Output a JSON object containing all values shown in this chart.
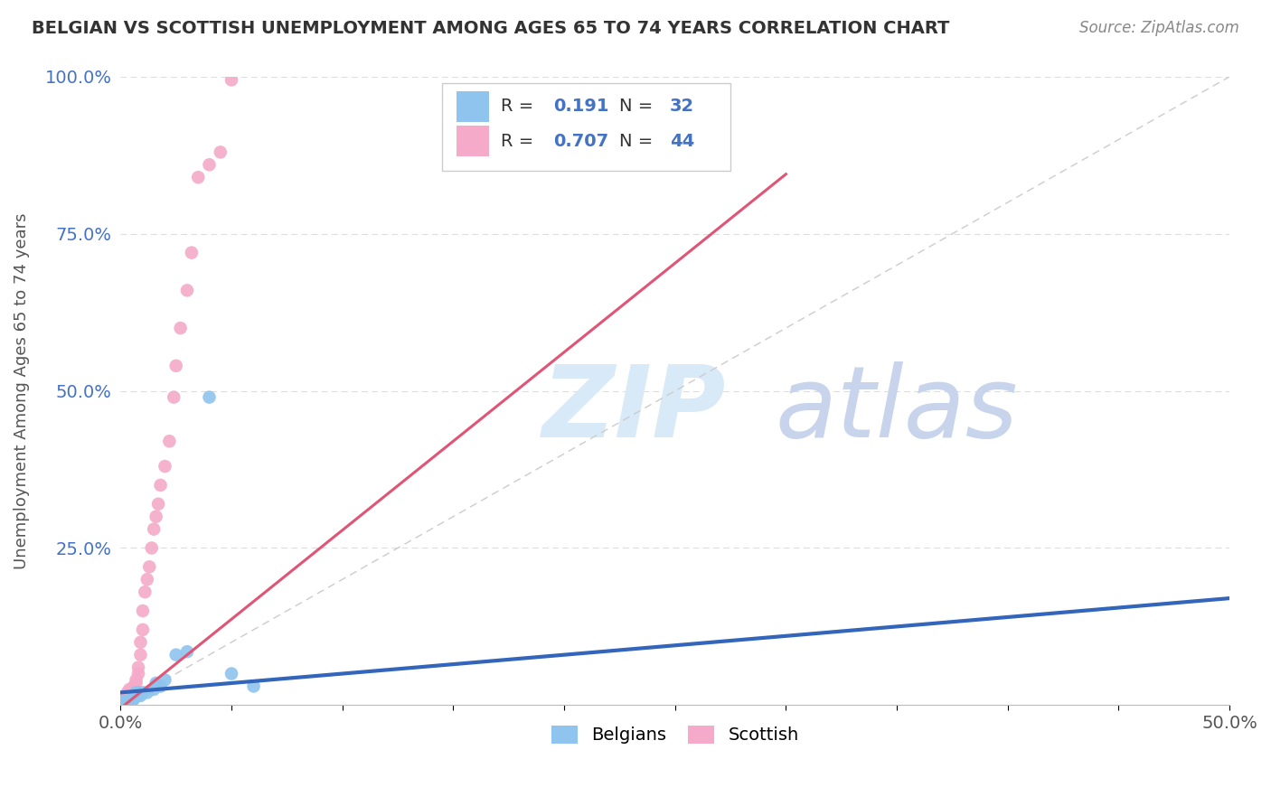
{
  "title": "BELGIAN VS SCOTTISH UNEMPLOYMENT AMONG AGES 65 TO 74 YEARS CORRELATION CHART",
  "source": "Source: ZipAtlas.com",
  "ylabel": "Unemployment Among Ages 65 to 74 years",
  "xlim": [
    0,
    0.5
  ],
  "ylim": [
    0,
    1.0
  ],
  "belgian_R": 0.191,
  "belgian_N": 32,
  "scottish_R": 0.707,
  "scottish_N": 44,
  "belgian_color": "#8ec4ed",
  "scottish_color": "#f4aac8",
  "belgian_line_color": "#3366bb",
  "scottish_line_color": "#e05575",
  "ref_line_color": "#cccccc",
  "watermark_zip_color": "#cce0f5",
  "watermark_atlas_color": "#c8d8f0",
  "background_color": "#ffffff",
  "grid_color": "#dddddd",
  "ytick_color": "#4472c4",
  "belgian_x": [
    0.001,
    0.001,
    0.002,
    0.002,
    0.002,
    0.003,
    0.003,
    0.003,
    0.004,
    0.004,
    0.005,
    0.005,
    0.005,
    0.006,
    0.006,
    0.006,
    0.007,
    0.007,
    0.008,
    0.008,
    0.009,
    0.01,
    0.012,
    0.015,
    0.016,
    0.018,
    0.02,
    0.025,
    0.03,
    0.04,
    0.05,
    0.06
  ],
  "belgian_y": [
    0.005,
    0.005,
    0.005,
    0.005,
    0.005,
    0.005,
    0.005,
    0.005,
    0.005,
    0.005,
    0.005,
    0.01,
    0.01,
    0.01,
    0.01,
    0.015,
    0.015,
    0.02,
    0.015,
    0.02,
    0.015,
    0.02,
    0.02,
    0.025,
    0.035,
    0.03,
    0.04,
    0.08,
    0.085,
    0.49,
    0.05,
    0.03
  ],
  "scottish_x": [
    0.001,
    0.001,
    0.002,
    0.002,
    0.002,
    0.003,
    0.003,
    0.003,
    0.003,
    0.004,
    0.004,
    0.004,
    0.005,
    0.005,
    0.006,
    0.006,
    0.006,
    0.007,
    0.007,
    0.008,
    0.008,
    0.009,
    0.009,
    0.01,
    0.01,
    0.011,
    0.012,
    0.013,
    0.014,
    0.015,
    0.016,
    0.017,
    0.018,
    0.02,
    0.022,
    0.024,
    0.025,
    0.027,
    0.03,
    0.032,
    0.035,
    0.04,
    0.045,
    0.05
  ],
  "scottish_y": [
    0.005,
    0.005,
    0.005,
    0.01,
    0.01,
    0.005,
    0.01,
    0.015,
    0.02,
    0.015,
    0.02,
    0.025,
    0.015,
    0.02,
    0.02,
    0.025,
    0.03,
    0.035,
    0.04,
    0.05,
    0.06,
    0.08,
    0.1,
    0.12,
    0.15,
    0.18,
    0.2,
    0.22,
    0.25,
    0.28,
    0.3,
    0.32,
    0.35,
    0.38,
    0.42,
    0.49,
    0.54,
    0.6,
    0.66,
    0.72,
    0.84,
    0.86,
    0.88,
    0.995
  ]
}
